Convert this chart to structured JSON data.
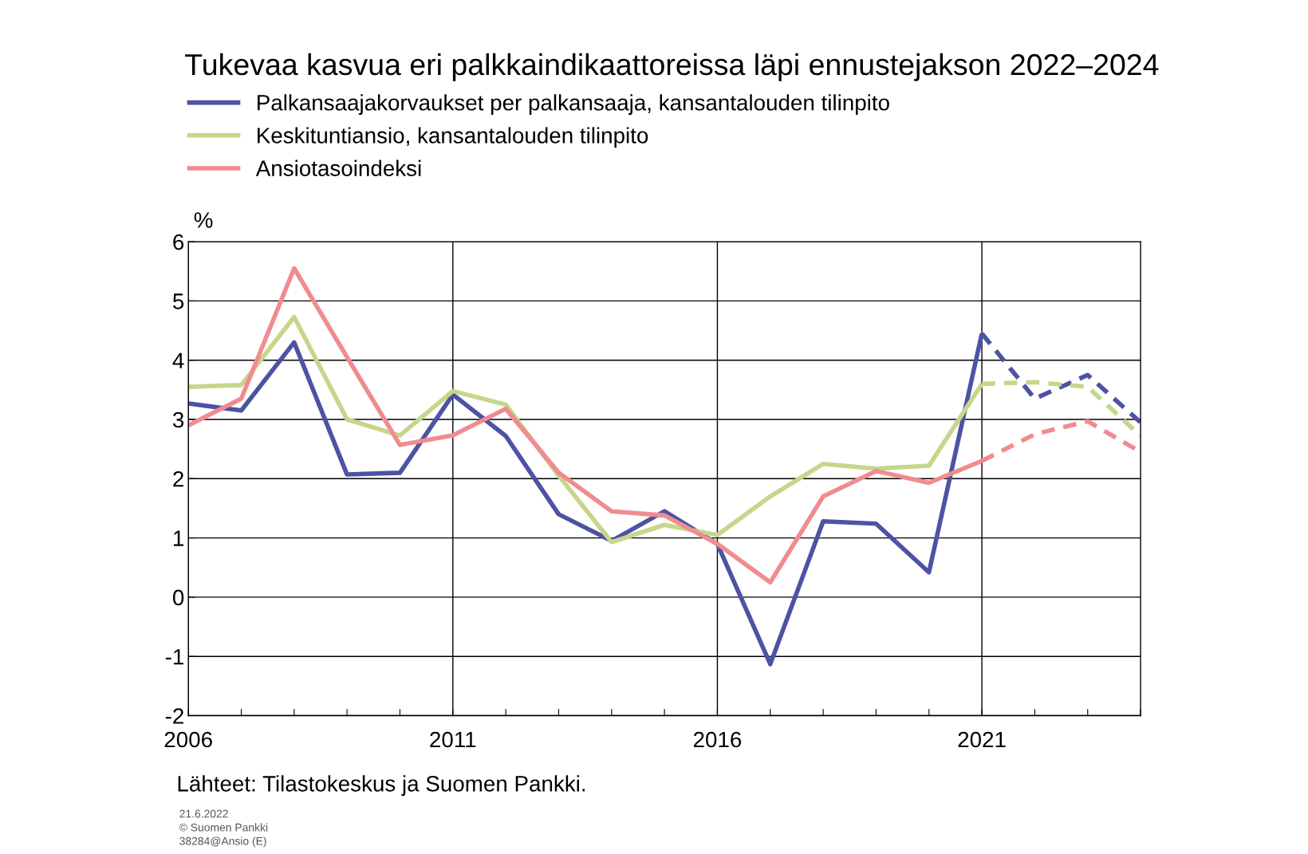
{
  "chart_data": {
    "type": "line",
    "title": "Tukevaa kasvua eri palkkaindikaattoreissa läpi ennustejakson 2022–2024",
    "ylabel": "%",
    "series": [
      {
        "name": "Palkansaajakorvaukset per palkansaaja, kansantalouden tilinpito",
        "color": "#4c53a3",
        "line_style": "solid",
        "x": [
          2006,
          2007,
          2008,
          2009,
          2010,
          2011,
          2012,
          2013,
          2014,
          2015,
          2016,
          2017,
          2018,
          2019,
          2020,
          2021
        ],
        "values": [
          3.27,
          3.15,
          4.3,
          2.07,
          2.1,
          3.42,
          2.72,
          1.4,
          0.95,
          1.45,
          0.9,
          -1.13,
          1.28,
          1.24,
          0.42,
          4.45
        ]
      },
      {
        "name": "Keskituntiansio, kansantalouden tilinpito",
        "color": "#c6d68a",
        "line_style": "solid",
        "x": [
          2006,
          2007,
          2008,
          2009,
          2010,
          2011,
          2012,
          2013,
          2014,
          2015,
          2016,
          2017,
          2018,
          2019,
          2020,
          2021
        ],
        "values": [
          3.55,
          3.58,
          4.73,
          3.0,
          2.73,
          3.48,
          3.25,
          2.05,
          0.93,
          1.22,
          1.05,
          1.7,
          2.25,
          2.17,
          2.22,
          3.6
        ]
      },
      {
        "name": "Ansiotasoindeksi",
        "color": "#f08c8f",
        "line_style": "solid",
        "x": [
          2006,
          2007,
          2008,
          2009,
          2010,
          2011,
          2012,
          2013,
          2014,
          2015,
          2016,
          2017,
          2018,
          2019,
          2020,
          2021
        ],
        "values": [
          2.9,
          3.35,
          5.55,
          4.05,
          2.57,
          2.73,
          3.18,
          2.1,
          1.45,
          1.38,
          0.9,
          0.25,
          1.7,
          2.13,
          1.93,
          2.3
        ]
      },
      {
        "color": "#4c53a3",
        "line_style": "dashed",
        "x": [
          2021,
          2022,
          2023,
          2024
        ],
        "values": [
          4.45,
          3.35,
          3.75,
          2.95
        ]
      },
      {
        "color": "#c6d68a",
        "line_style": "dashed",
        "x": [
          2021,
          2022,
          2023,
          2024
        ],
        "values": [
          3.6,
          3.63,
          3.55,
          2.72
        ]
      },
      {
        "color": "#f08c8f",
        "line_style": "dashed",
        "x": [
          2021,
          2022,
          2023,
          2024
        ],
        "values": [
          2.3,
          2.75,
          2.97,
          2.45
        ]
      }
    ],
    "xlim": [
      2006,
      2024
    ],
    "xticks": [
      2006,
      {
        "value": 2007,
        "label": null
      },
      {
        "value": 2008,
        "label": null
      },
      {
        "value": 2009,
        "label": null
      },
      {
        "value": 2010,
        "label": null
      },
      2011,
      {
        "value": 2012,
        "label": null
      },
      {
        "value": 2013,
        "label": null
      },
      {
        "value": 2014,
        "label": null
      },
      {
        "value": 2015,
        "label": null
      },
      2016,
      {
        "value": 2017,
        "label": null
      },
      {
        "value": 2018,
        "label": null
      },
      {
        "value": 2019,
        "label": null
      },
      {
        "value": 2020,
        "label": null
      },
      2021,
      {
        "value": 2022,
        "label": null
      },
      {
        "value": 2023,
        "label": null
      },
      {
        "value": 2024,
        "label": null
      }
    ],
    "ylim": [
      -2,
      6
    ],
    "yticks": [
      -2,
      -1,
      0,
      1,
      2,
      3,
      4,
      5,
      6
    ],
    "grid": true,
    "legend": "top",
    "annotations": [
      "Lähteet: Tilastokeskus ja Suomen Pankki.",
      "21.6.2022",
      "© Suomen Pankki",
      "38284@Ansio (E)"
    ]
  }
}
